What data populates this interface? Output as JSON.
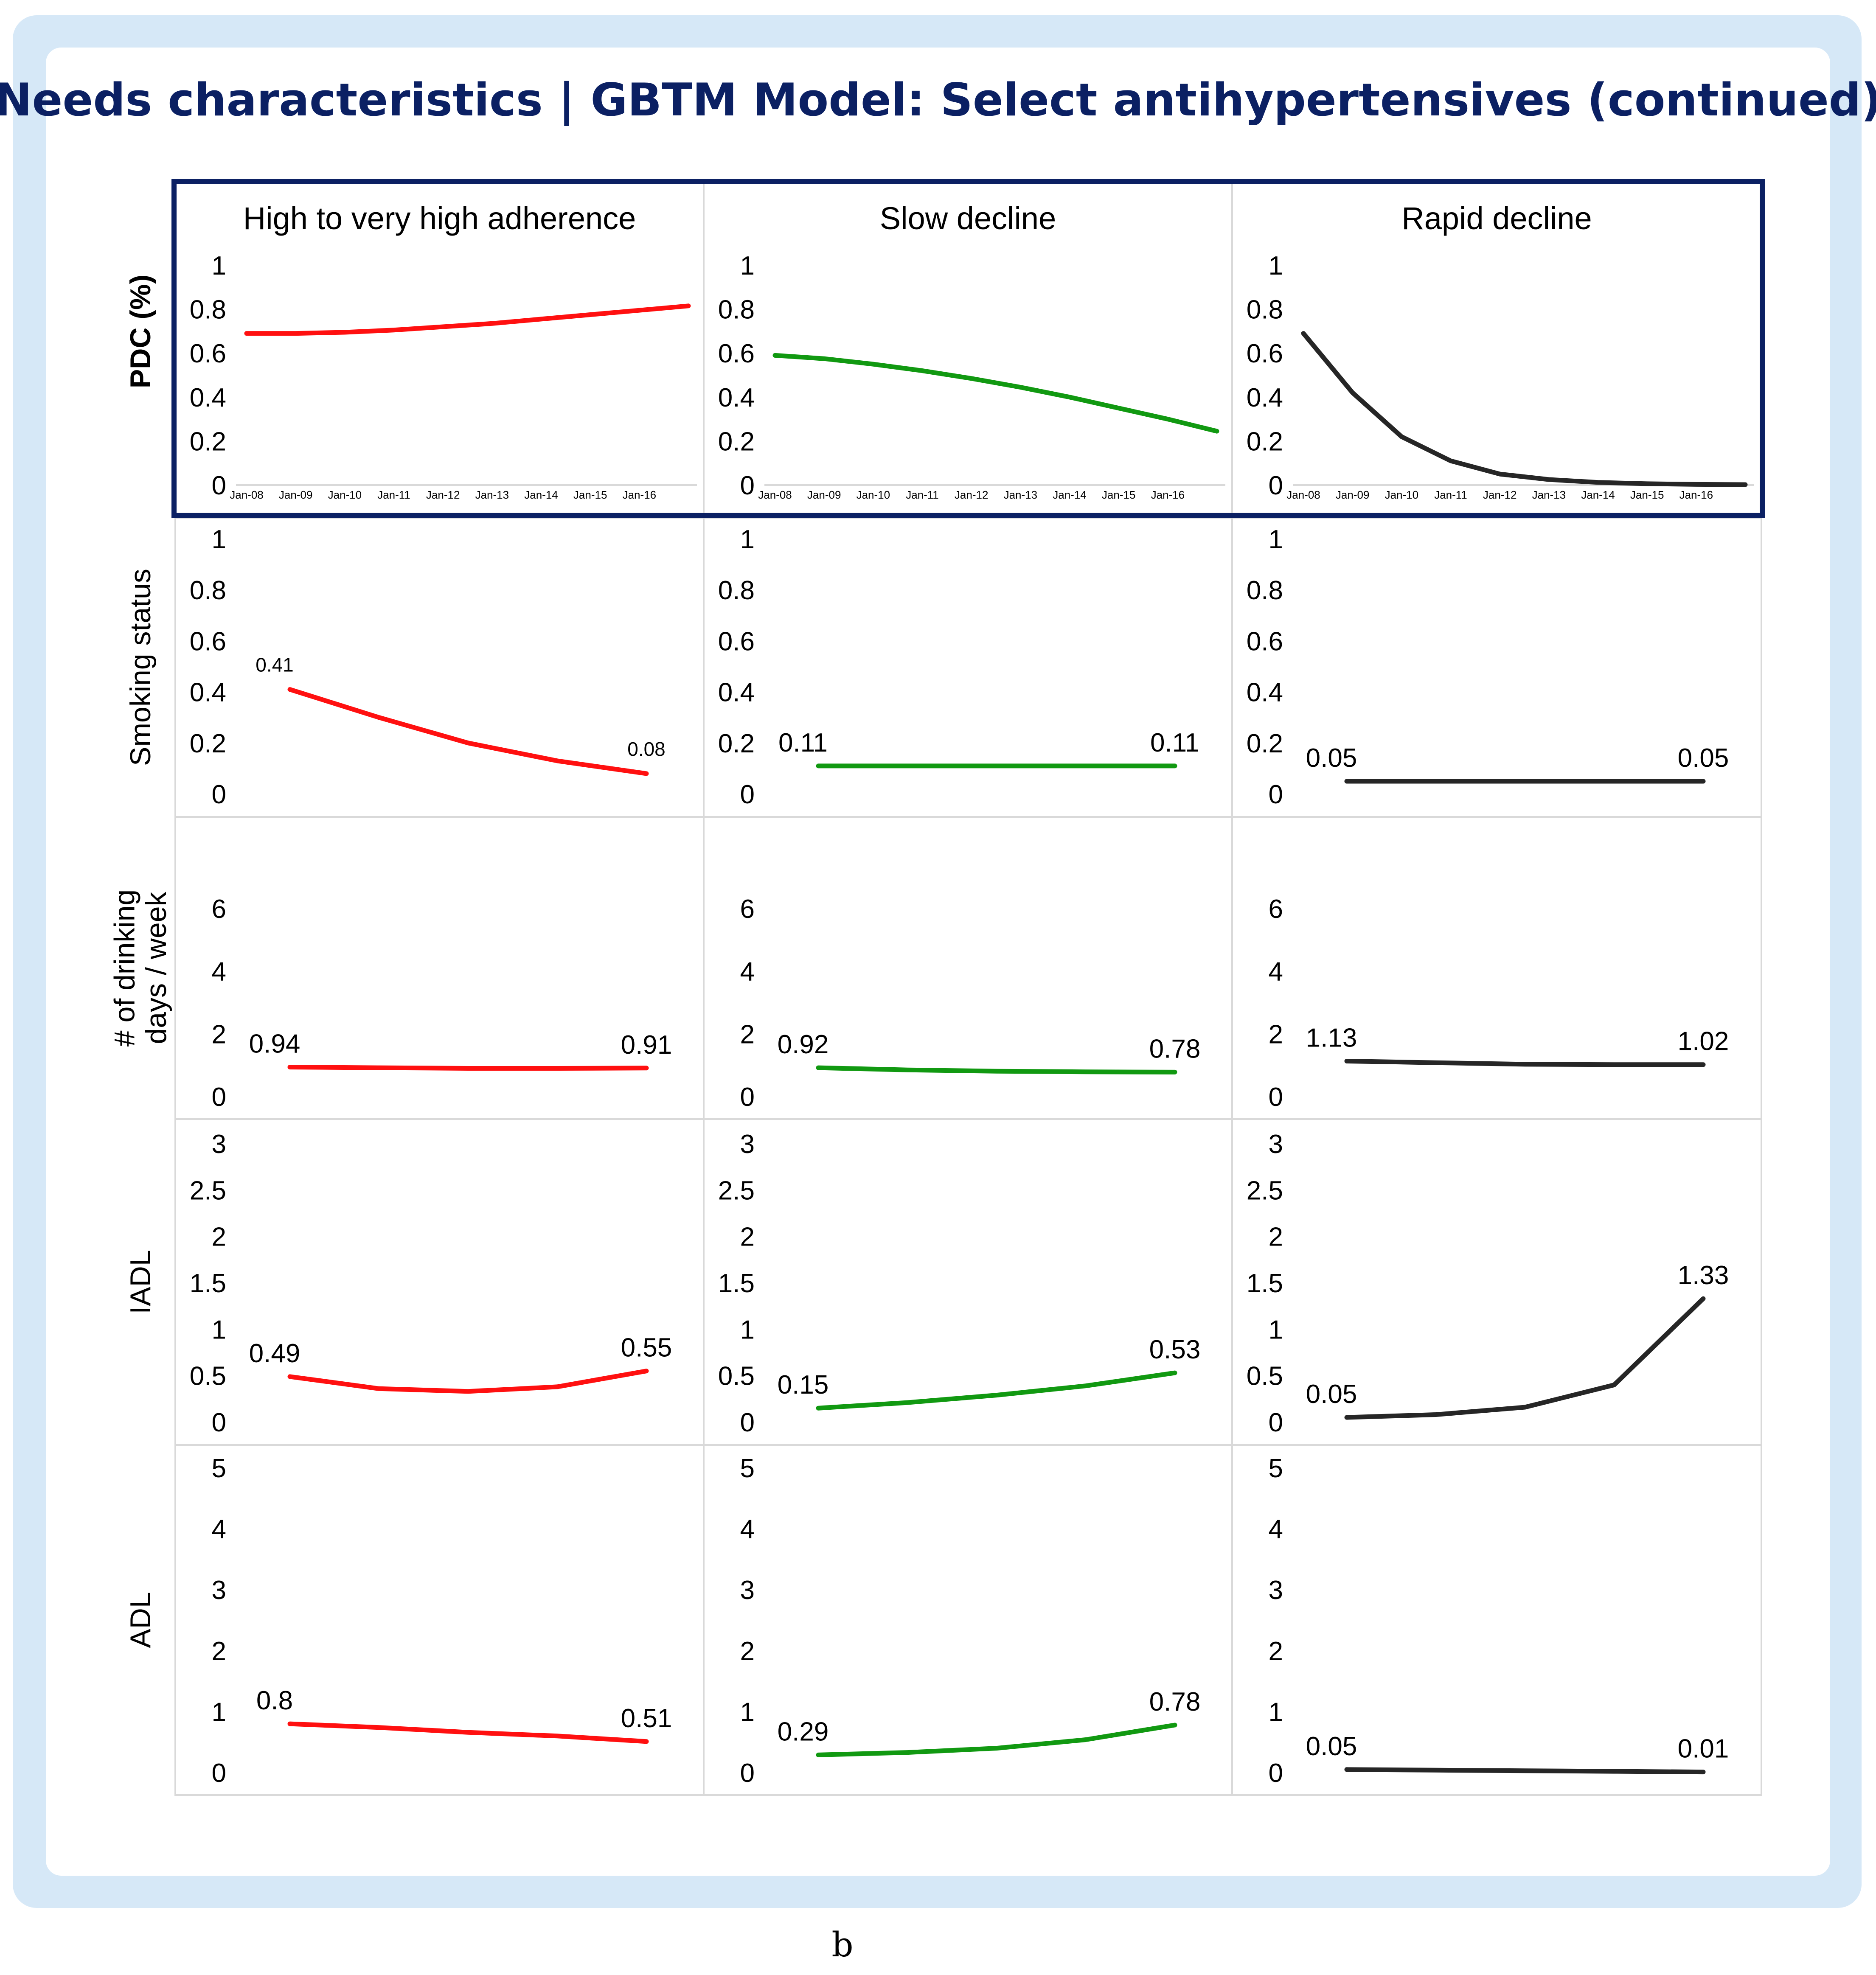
{
  "title": "Needs characteristics | GBTM Model: Select antihypertensives (continued)",
  "caption": "b",
  "colors": {
    "frame_bg": "#d6e8f7",
    "card_bg": "#ffffff",
    "title": "#0b2063",
    "highlight_border": "#0b2063",
    "grid": "#d9d9d9",
    "series": [
      "#ff1010",
      "#119911",
      "#262626"
    ]
  },
  "columns": [
    "High to very high adherence",
    "Slow decline",
    "Rapid decline"
  ],
  "chart_data": {
    "type": "line",
    "layout": "grid 5 rows x 3 columns (small multiples)",
    "highlighted_row": "PDC (%)",
    "rows": [
      {
        "ylabel": "PDC (%)",
        "ylabel_lines": [
          "PDC (%)"
        ],
        "ylabel_bold": true,
        "ylim": [
          0,
          1
        ],
        "yticks": [
          {
            "v": 0,
            "label": "0"
          },
          {
            "v": 0.2,
            "label": "0.2"
          },
          {
            "v": 0.4,
            "label": "0.4"
          },
          {
            "v": 0.6,
            "label": "0.6"
          },
          {
            "v": 0.8,
            "label": "0.8"
          },
          {
            "v": 1,
            "label": "1"
          }
        ],
        "xticks": [
          "Jan-08",
          "Jan-09",
          "Jan-10",
          "Jan-11",
          "Jan-12",
          "Jan-13",
          "Jan-14",
          "Jan-15",
          "Jan-16"
        ],
        "series": [
          {
            "name": "High to very high adherence",
            "x": [
              0,
              1,
              2,
              3,
              4,
              5,
              6,
              7,
              8,
              9
            ],
            "y": [
              0.69,
              0.69,
              0.695,
              0.705,
              0.72,
              0.735,
              0.755,
              0.775,
              0.795,
              0.815
            ],
            "labels": []
          },
          {
            "name": "Slow decline",
            "x": [
              0,
              1,
              2,
              3,
              4,
              5,
              6,
              7,
              8,
              9
            ],
            "y": [
              0.59,
              0.575,
              0.55,
              0.52,
              0.485,
              0.445,
              0.4,
              0.35,
              0.3,
              0.245
            ],
            "labels": []
          },
          {
            "name": "Rapid decline",
            "x": [
              0,
              1,
              2,
              3,
              4,
              5,
              6,
              7,
              8,
              9
            ],
            "y": [
              0.69,
              0.42,
              0.22,
              0.11,
              0.05,
              0.025,
              0.012,
              0.006,
              0.003,
              0.002
            ],
            "labels": []
          }
        ]
      },
      {
        "ylabel": "Smoking status",
        "ylabel_lines": [
          "Smoking status"
        ],
        "ylabel_bold": false,
        "ylim": [
          0,
          1
        ],
        "yticks": [
          {
            "v": 0,
            "label": "0"
          },
          {
            "v": 0.2,
            "label": "0.2"
          },
          {
            "v": 0.4,
            "label": "0.4"
          },
          {
            "v": 0.6,
            "label": "0.6"
          },
          {
            "v": 0.8,
            "label": "0.8"
          },
          {
            "v": 1,
            "label": "1"
          }
        ],
        "series": [
          {
            "name": "High to very high adherence",
            "x": [
              0,
              1,
              2,
              3,
              4
            ],
            "y": [
              0.41,
              0.3,
              0.2,
              0.13,
              0.08
            ],
            "labels": [
              {
                "i": 0,
                "text": "0.41"
              },
              {
                "i": 4,
                "text": "0.08"
              }
            ],
            "label_size": "small"
          },
          {
            "name": "Slow decline",
            "x": [
              0,
              4
            ],
            "y": [
              0.11,
              0.11
            ],
            "labels": [
              {
                "i": 0,
                "text": "0.11"
              },
              {
                "i": 1,
                "text": "0.11"
              }
            ]
          },
          {
            "name": "Rapid decline",
            "x": [
              0,
              4
            ],
            "y": [
              0.05,
              0.05
            ],
            "labels": [
              {
                "i": 0,
                "text": "0.05"
              },
              {
                "i": 1,
                "text": "0.05"
              }
            ]
          }
        ]
      },
      {
        "ylabel": "# of drinking days / week",
        "ylabel_lines": [
          "# of drinking",
          "days / week"
        ],
        "ylabel_bold": false,
        "ylim": [
          0,
          7
        ],
        "yticks": [
          {
            "v": 0,
            "label": "0"
          },
          {
            "v": 2,
            "label": "2"
          },
          {
            "v": 4,
            "label": "4"
          },
          {
            "v": 6,
            "label": "6"
          }
        ],
        "series": [
          {
            "name": "High to very high adherence",
            "x": [
              0,
              1,
              2,
              3,
              4
            ],
            "y": [
              0.94,
              0.92,
              0.9,
              0.9,
              0.91
            ],
            "labels": [
              {
                "i": 0,
                "text": "0.94"
              },
              {
                "i": 4,
                "text": "0.91"
              }
            ]
          },
          {
            "name": "Slow decline",
            "x": [
              0,
              1,
              2,
              3,
              4
            ],
            "y": [
              0.92,
              0.85,
              0.81,
              0.79,
              0.78
            ],
            "labels": [
              {
                "i": 0,
                "text": "0.92"
              },
              {
                "i": 4,
                "text": "0.78"
              }
            ]
          },
          {
            "name": "Rapid decline",
            "x": [
              0,
              1,
              2,
              3,
              4
            ],
            "y": [
              1.13,
              1.08,
              1.03,
              1.02,
              1.02
            ],
            "labels": [
              {
                "i": 0,
                "text": "1.13"
              },
              {
                "i": 4,
                "text": "1.02"
              }
            ]
          }
        ]
      },
      {
        "ylabel": "IADL",
        "ylabel_lines": [
          "IADL"
        ],
        "ylabel_bold": false,
        "ylim": [
          0,
          3
        ],
        "yticks": [
          {
            "v": 0,
            "label": "0"
          },
          {
            "v": 0.5,
            "label": "0.5"
          },
          {
            "v": 1,
            "label": "1"
          },
          {
            "v": 1.5,
            "label": "1.5"
          },
          {
            "v": 2,
            "label": "2"
          },
          {
            "v": 2.5,
            "label": "2.5"
          },
          {
            "v": 3,
            "label": "3"
          }
        ],
        "series": [
          {
            "name": "High to very high adherence",
            "x": [
              0,
              1,
              2,
              3,
              4
            ],
            "y": [
              0.49,
              0.36,
              0.33,
              0.38,
              0.55
            ],
            "labels": [
              {
                "i": 0,
                "text": "0.49"
              },
              {
                "i": 4,
                "text": "0.55"
              }
            ]
          },
          {
            "name": "Slow decline",
            "x": [
              0,
              1,
              2,
              3,
              4
            ],
            "y": [
              0.15,
              0.21,
              0.29,
              0.39,
              0.53
            ],
            "labels": [
              {
                "i": 0,
                "text": "0.15"
              },
              {
                "i": 4,
                "text": "0.53"
              }
            ]
          },
          {
            "name": "Rapid decline",
            "x": [
              0,
              1,
              2,
              3,
              4
            ],
            "y": [
              0.05,
              0.08,
              0.16,
              0.4,
              1.33
            ],
            "labels": [
              {
                "i": 0,
                "text": "0.05"
              },
              {
                "i": 4,
                "text": "1.33"
              }
            ]
          }
        ]
      },
      {
        "ylabel": "ADL",
        "ylabel_lines": [
          "ADL"
        ],
        "ylabel_bold": false,
        "ylim": [
          0,
          5
        ],
        "yticks": [
          {
            "v": 0,
            "label": "0"
          },
          {
            "v": 1,
            "label": "1"
          },
          {
            "v": 2,
            "label": "2"
          },
          {
            "v": 3,
            "label": "3"
          },
          {
            "v": 4,
            "label": "4"
          },
          {
            "v": 5,
            "label": "5"
          }
        ],
        "series": [
          {
            "name": "High to very high adherence",
            "x": [
              0,
              1,
              2,
              3,
              4
            ],
            "y": [
              0.8,
              0.74,
              0.66,
              0.6,
              0.51
            ],
            "labels": [
              {
                "i": 0,
                "text": "0.8"
              },
              {
                "i": 4,
                "text": "0.51"
              }
            ]
          },
          {
            "name": "Slow decline",
            "x": [
              0,
              1,
              2,
              3,
              4
            ],
            "y": [
              0.29,
              0.33,
              0.4,
              0.54,
              0.78
            ],
            "labels": [
              {
                "i": 0,
                "text": "0.29"
              },
              {
                "i": 4,
                "text": "0.78"
              }
            ]
          },
          {
            "name": "Rapid decline",
            "x": [
              0,
              1,
              2,
              3,
              4
            ],
            "y": [
              0.05,
              0.04,
              0.03,
              0.02,
              0.01
            ],
            "labels": [
              {
                "i": 0,
                "text": "0.05"
              },
              {
                "i": 4,
                "text": "0.01"
              }
            ]
          }
        ]
      }
    ]
  }
}
